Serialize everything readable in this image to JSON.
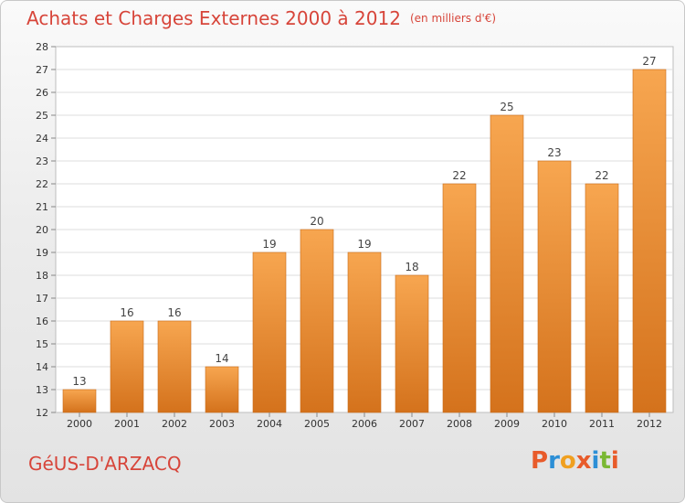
{
  "header": {
    "title": "Achats et Charges Externes 2000 à 2012",
    "unit": "(en milliers d'€)"
  },
  "footer": {
    "commune": "GéUS-D'ARZACQ",
    "logo_text": "Proxiti"
  },
  "colors": {
    "title": "#d7453a",
    "bar_light": "#f7a650",
    "bar_dark": "#d4721c",
    "logo_letters": [
      "#e85b2a",
      "#2c8fd6",
      "#f0a020",
      "#e85b2a",
      "#2c8fd6",
      "#7ab833",
      "#e85b2a"
    ]
  },
  "chart_data": {
    "type": "bar",
    "title": "Achats et Charges Externes 2000 à 2012",
    "xlabel": "",
    "ylabel": "",
    "categories": [
      "2000",
      "2001",
      "2002",
      "2003",
      "2004",
      "2005",
      "2006",
      "2007",
      "2008",
      "2009",
      "2010",
      "2011",
      "2012"
    ],
    "values": [
      13,
      16,
      16,
      14,
      19,
      20,
      19,
      18,
      22,
      25,
      23,
      22,
      27
    ],
    "ylim": [
      12,
      28
    ],
    "yticks": [
      12,
      13,
      14,
      15,
      16,
      17,
      18,
      19,
      20,
      21,
      22,
      23,
      24,
      25,
      26,
      27,
      28
    ],
    "grid": "horizontal",
    "data_labels": true
  }
}
